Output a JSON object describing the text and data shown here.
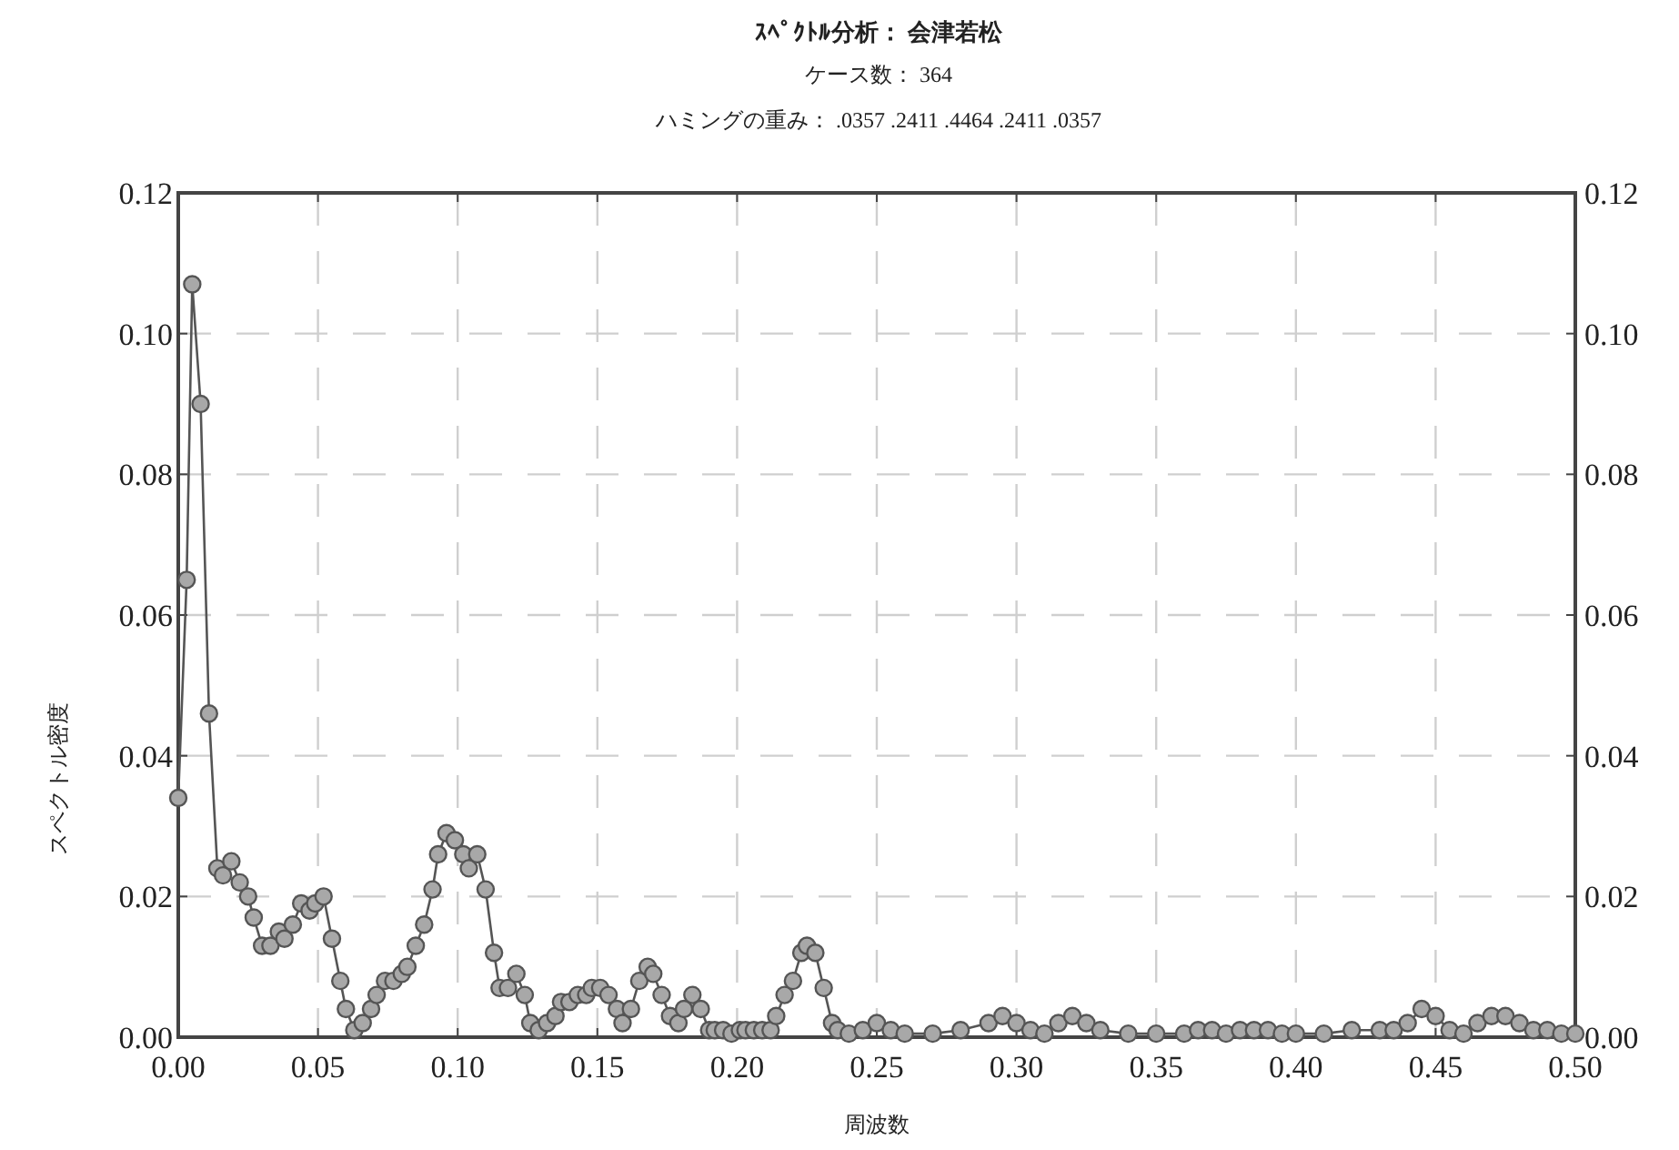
{
  "chart_data": {
    "type": "line",
    "title": "ｽﾍﾟｸﾄﾙ分析： 会津若松",
    "subtitle": "ケース数： 364",
    "annotations": [
      "ハミングの重み： .0357 .2411 .4464 .2411 .0357"
    ],
    "xlabel": "周波数",
    "ylabel": "スペクトル密度",
    "xlim": [
      0,
      0.5
    ],
    "ylim": [
      0,
      0.12
    ],
    "y2lim": [
      0,
      0.12
    ],
    "xticks": [
      {
        "value": 0,
        "label": "0.00"
      },
      {
        "value": 0.05,
        "label": "0.05"
      },
      {
        "value": 0.1,
        "label": "0.10"
      },
      {
        "value": 0.15,
        "label": "0.15"
      },
      {
        "value": 0.2,
        "label": "0.20"
      },
      {
        "value": 0.25,
        "label": "0.25"
      },
      {
        "value": 0.3,
        "label": "0.30"
      },
      {
        "value": 0.35,
        "label": "0.35"
      },
      {
        "value": 0.4,
        "label": "0.40"
      },
      {
        "value": 0.45,
        "label": "0.45"
      },
      {
        "value": 0.5,
        "label": "0.50"
      }
    ],
    "yticks": [
      {
        "value": 0,
        "label": "0.00"
      },
      {
        "value": 0.02,
        "label": "0.02"
      },
      {
        "value": 0.04,
        "label": "0.04"
      },
      {
        "value": 0.06,
        "label": "0.06"
      },
      {
        "value": 0.08,
        "label": "0.08"
      },
      {
        "value": 0.1,
        "label": "0.10"
      },
      {
        "value": 0.12,
        "label": "0.12"
      }
    ],
    "y2ticks": [
      {
        "value": 0,
        "label": "0.00"
      },
      {
        "value": 0.02,
        "label": "0.02"
      },
      {
        "value": 0.04,
        "label": "0.04"
      },
      {
        "value": 0.06,
        "label": "0.06"
      },
      {
        "value": 0.08,
        "label": "0.08"
      },
      {
        "value": 0.1,
        "label": "0.10"
      },
      {
        "value": 0.12,
        "label": "0.12"
      }
    ],
    "grid": true,
    "marker": "circle",
    "line_style": "solid",
    "series": [
      {
        "color": "#a8a8a8",
        "x": [
          0,
          0.003,
          0.005,
          0.008,
          0.011,
          0.014,
          0.016,
          0.019,
          0.022,
          0.025,
          0.027,
          0.03,
          0.033,
          0.036,
          0.038,
          0.041,
          0.044,
          0.047,
          0.049,
          0.052,
          0.055,
          0.058,
          0.06,
          0.063,
          0.066,
          0.069,
          0.071,
          0.074,
          0.077,
          0.08,
          0.082,
          0.085,
          0.088,
          0.091,
          0.093,
          0.096,
          0.099,
          0.102,
          0.104,
          0.107,
          0.11,
          0.113,
          0.115,
          0.118,
          0.121,
          0.124,
          0.126,
          0.129,
          0.132,
          0.135,
          0.137,
          0.14,
          0.143,
          0.146,
          0.148,
          0.151,
          0.154,
          0.157,
          0.159,
          0.162,
          0.165,
          0.168,
          0.17,
          0.173,
          0.176,
          0.179,
          0.181,
          0.184,
          0.187,
          0.19,
          0.192,
          0.195,
          0.198,
          0.201,
          0.203,
          0.206,
          0.209,
          0.212,
          0.214,
          0.217,
          0.22,
          0.223,
          0.225,
          0.228,
          0.231,
          0.234,
          0.236,
          0.24,
          0.245,
          0.25,
          0.255,
          0.26,
          0.27,
          0.28,
          0.29,
          0.295,
          0.3,
          0.305,
          0.31,
          0.315,
          0.32,
          0.325,
          0.33,
          0.34,
          0.35,
          0.36,
          0.365,
          0.37,
          0.375,
          0.38,
          0.385,
          0.39,
          0.395,
          0.4,
          0.41,
          0.42,
          0.43,
          0.435,
          0.44,
          0.445,
          0.45,
          0.455,
          0.46,
          0.465,
          0.47,
          0.475,
          0.48,
          0.485,
          0.49,
          0.495,
          0.5
        ],
        "values": [
          0.034,
          0.065,
          0.107,
          0.09,
          0.046,
          0.024,
          0.023,
          0.025,
          0.022,
          0.02,
          0.017,
          0.013,
          0.013,
          0.015,
          0.014,
          0.016,
          0.019,
          0.018,
          0.019,
          0.02,
          0.014,
          0.008,
          0.004,
          0.001,
          0.002,
          0.004,
          0.006,
          0.008,
          0.008,
          0.009,
          0.01,
          0.013,
          0.016,
          0.021,
          0.026,
          0.029,
          0.028,
          0.026,
          0.024,
          0.026,
          0.021,
          0.012,
          0.007,
          0.007,
          0.009,
          0.006,
          0.002,
          0.001,
          0.002,
          0.003,
          0.005,
          0.005,
          0.006,
          0.006,
          0.007,
          0.007,
          0.006,
          0.004,
          0.002,
          0.004,
          0.008,
          0.01,
          0.009,
          0.006,
          0.003,
          0.002,
          0.004,
          0.006,
          0.004,
          0.001,
          0.001,
          0.001,
          0.0005,
          0.001,
          0.001,
          0.001,
          0.001,
          0.001,
          0.003,
          0.006,
          0.008,
          0.012,
          0.013,
          0.012,
          0.007,
          0.002,
          0.001,
          0.0005,
          0.001,
          0.002,
          0.001,
          0.0005,
          0.0005,
          0.001,
          0.002,
          0.003,
          0.002,
          0.001,
          0.0005,
          0.002,
          0.003,
          0.002,
          0.001,
          0.0005,
          0.0005,
          0.0005,
          0.001,
          0.001,
          0.0005,
          0.001,
          0.001,
          0.001,
          0.0005,
          0.0005,
          0.0005,
          0.001,
          0.001,
          0.001,
          0.002,
          0.004,
          0.003,
          0.001,
          0.0005,
          0.002,
          0.003,
          0.003,
          0.002,
          0.001,
          0.001,
          0.0005,
          0.0005
        ]
      }
    ]
  }
}
